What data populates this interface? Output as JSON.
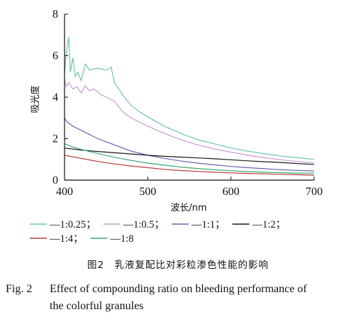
{
  "chart_data": {
    "type": "line",
    "xlabel": "波长/nm",
    "ylabel": "吸光度",
    "xlim": [
      400,
      700
    ],
    "ylim": [
      0,
      8
    ],
    "xticks": [
      400,
      500,
      600,
      700
    ],
    "yticks": [
      0,
      2,
      4,
      6,
      8
    ],
    "grid": false,
    "legend_position": "bottom",
    "series": [
      {
        "name": "1:0.25",
        "color": "#6fc4b4",
        "x": [
          400,
          402,
          405,
          407,
          410,
          413,
          416,
          420,
          425,
          430,
          440,
          450,
          456,
          460,
          465,
          470,
          480,
          490,
          500,
          520,
          540,
          560,
          580,
          600,
          620,
          640,
          660,
          680,
          700
        ],
        "y": [
          5.1,
          6.1,
          6.9,
          5.2,
          5.9,
          5.0,
          5.2,
          4.8,
          5.6,
          5.3,
          5.4,
          5.3,
          5.45,
          4.7,
          4.4,
          4.1,
          3.6,
          3.3,
          3.05,
          2.6,
          2.25,
          1.95,
          1.75,
          1.55,
          1.4,
          1.28,
          1.16,
          1.08,
          1.0
        ]
      },
      {
        "name": "1:0.5",
        "color": "#c79ad8",
        "x": [
          400,
          402,
          405,
          410,
          415,
          420,
          425,
          430,
          435,
          440,
          445,
          450,
          455,
          460,
          470,
          480,
          490,
          500,
          520,
          540,
          560,
          580,
          600,
          620,
          640,
          660,
          680,
          700
        ],
        "y": [
          4.9,
          4.5,
          4.7,
          4.4,
          4.5,
          4.2,
          4.55,
          4.3,
          4.4,
          4.25,
          4.1,
          4.0,
          3.9,
          3.8,
          3.3,
          3.0,
          2.8,
          2.6,
          2.25,
          1.95,
          1.7,
          1.5,
          1.35,
          1.2,
          1.08,
          0.98,
          0.9,
          0.83
        ]
      },
      {
        "name": "1:1",
        "color": "#6a60b4",
        "x": [
          400,
          403,
          410,
          420,
          430,
          440,
          450,
          460,
          470,
          480,
          490,
          500,
          520,
          540,
          560,
          580,
          600,
          620,
          640,
          660,
          680,
          700
        ],
        "y": [
          3.0,
          2.8,
          2.6,
          2.4,
          2.2,
          2.0,
          1.85,
          1.7,
          1.55,
          1.4,
          1.3,
          1.2,
          1.05,
          0.92,
          0.82,
          0.74,
          0.66,
          0.6,
          0.55,
          0.5,
          0.47,
          0.44
        ]
      },
      {
        "name": "1:2",
        "color": "#1a1a1a",
        "x": [
          400,
          420,
          440,
          460,
          480,
          500,
          520,
          540,
          560,
          580,
          600,
          620,
          640,
          660,
          680,
          700
        ],
        "y": [
          1.55,
          1.45,
          1.38,
          1.32,
          1.26,
          1.2,
          1.15,
          1.11,
          1.07,
          1.03,
          0.98,
          0.93,
          0.89,
          0.85,
          0.8,
          0.76
        ]
      },
      {
        "name": "1:4",
        "color": "#b83a3a",
        "x": [
          400,
          420,
          440,
          460,
          480,
          500,
          520,
          540,
          560,
          580,
          600,
          620,
          640,
          660,
          680,
          700
        ],
        "y": [
          1.2,
          1.05,
          0.9,
          0.78,
          0.68,
          0.6,
          0.52,
          0.46,
          0.42,
          0.38,
          0.35,
          0.32,
          0.3,
          0.28,
          0.26,
          0.24
        ]
      },
      {
        "name": "1:8",
        "color": "#3aa870",
        "x": [
          400,
          410,
          420,
          440,
          460,
          480,
          500,
          520,
          540,
          560,
          580,
          600,
          620,
          640,
          660,
          680,
          700
        ],
        "y": [
          1.75,
          1.6,
          1.48,
          1.28,
          1.1,
          0.95,
          0.82,
          0.72,
          0.63,
          0.56,
          0.5,
          0.45,
          0.41,
          0.38,
          0.36,
          0.34,
          0.33
        ]
      }
    ]
  },
  "caption": {
    "cn": "图2　乳液复配比对彩粒渗色性能的影响",
    "en_label": "Fig. 2",
    "en_line1": "Effect of compounding ratio on bleeding performance of",
    "en_line2": "the colorful granules"
  }
}
